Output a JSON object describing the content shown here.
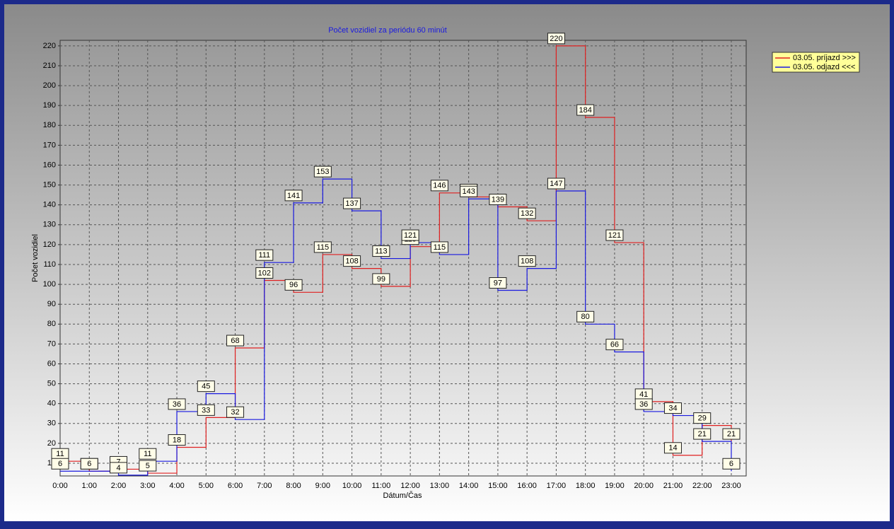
{
  "chart_data": {
    "type": "step",
    "title": "Počet vozidiel za periódu 60 minút",
    "x_label": "Dátum/Čas",
    "y_label": "Počet vozidiel",
    "categories": [
      "0:00",
      "1:00",
      "2:00",
      "3:00",
      "4:00",
      "5:00",
      "6:00",
      "7:00",
      "8:00",
      "9:00",
      "10:00",
      "11:00",
      "12:00",
      "13:00",
      "14:00",
      "15:00",
      "16:00",
      "17:00",
      "18:00",
      "19:00",
      "20:00",
      "21:00",
      "22:00",
      "23:00"
    ],
    "series": [
      {
        "name": "03.05.  príjazd >>>",
        "color": "#e02020",
        "values": [
          11,
          6,
          7,
          5,
          18,
          33,
          68,
          102,
          96,
          115,
          108,
          99,
          119,
          146,
          144,
          139,
          132,
          220,
          184,
          121,
          41,
          14,
          29,
          21
        ]
      },
      {
        "name": "03.05.  odjazd <<<",
        "color": "#1a1ae0",
        "values": [
          6,
          6,
          4,
          11,
          36,
          45,
          32,
          111,
          141,
          153,
          137,
          113,
          121,
          115,
          143,
          97,
          108,
          147,
          80,
          66,
          36,
          34,
          21,
          6
        ]
      }
    ],
    "ylim": [
      3.6,
      222.8
    ],
    "yticks": [
      10,
      20,
      30,
      40,
      50,
      60,
      70,
      80,
      90,
      100,
      110,
      120,
      130,
      140,
      150,
      160,
      170,
      180,
      190,
      200,
      210,
      220
    ],
    "grid": true,
    "legend": "top-right"
  }
}
